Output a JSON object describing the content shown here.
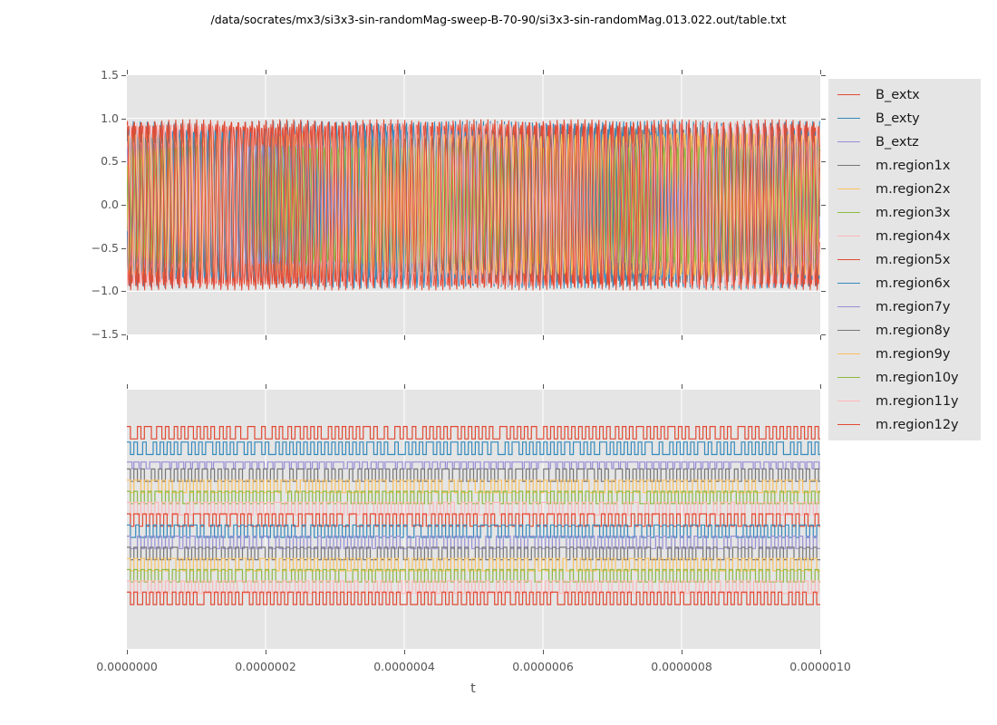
{
  "figure": {
    "title": "/data/socrates/mx3/si3x3-sin-randomMag-sweep-B-70-90/si3x3-sin-randomMag.013.022.out/table.txt",
    "background": "#ffffff",
    "panel_background": "#E5E5E5",
    "grid_color": "#ffffff",
    "tick_color": "#555555"
  },
  "palette": [
    "#E24A33",
    "#348ABD",
    "#988ED5",
    "#777777",
    "#FBC15E",
    "#8EBA42",
    "#FFB5B8"
  ],
  "legend": {
    "entries": [
      {
        "label": "B_extx",
        "color": "#E24A33"
      },
      {
        "label": "B_exty",
        "color": "#348ABD"
      },
      {
        "label": "B_extz",
        "color": "#988ED5"
      },
      {
        "label": "m.region1x",
        "color": "#777777"
      },
      {
        "label": "m.region2x",
        "color": "#FBC15E"
      },
      {
        "label": "m.region3x",
        "color": "#8EBA42"
      },
      {
        "label": "m.region4x",
        "color": "#FFB5B8"
      },
      {
        "label": "m.region5x",
        "color": "#E24A33"
      },
      {
        "label": "m.region6x",
        "color": "#348ABD"
      },
      {
        "label": "m.region7y",
        "color": "#988ED5"
      },
      {
        "label": "m.region8y",
        "color": "#777777"
      },
      {
        "label": "m.region9y",
        "color": "#FBC15E"
      },
      {
        "label": "m.region10y",
        "color": "#8EBA42"
      },
      {
        "label": "m.region11y",
        "color": "#FFB5B8"
      },
      {
        "label": "m.region12y",
        "color": "#E24A33"
      }
    ]
  },
  "chart_data": [
    {
      "type": "line",
      "panel": "top",
      "wave": "sine",
      "xlim": [
        0,
        1e-06
      ],
      "ylim": [
        -1.5,
        1.5
      ],
      "ytick_labels": [
        "1.5",
        "1.0",
        "0.5",
        "0.0",
        "−0.5",
        "−1.0",
        "−1.5"
      ],
      "grid": "both",
      "series": [
        {
          "name": "B_extx",
          "color": "#E24A33",
          "amplitude": 0.92,
          "cycles": 99,
          "phase": 0.0
        },
        {
          "name": "B_exty",
          "color": "#348ABD",
          "amplitude": 0.97,
          "cycles": 99,
          "phase": 2.1
        },
        {
          "name": "B_extz",
          "color": "#988ED5",
          "amplitude": 0.72,
          "cycles": 99,
          "phase": 4.2
        },
        {
          "name": "m.region1x",
          "color": "#777777",
          "amplitude": 0.9,
          "cycles": 101,
          "phase": 1.0
        },
        {
          "name": "m.region2x",
          "color": "#FBC15E",
          "amplitude": 0.84,
          "cycles": 98,
          "phase": 3.3
        },
        {
          "name": "m.region3x",
          "color": "#8EBA42",
          "amplitude": 0.79,
          "cycles": 102,
          "phase": 5.2
        },
        {
          "name": "m.region4x",
          "color": "#FFB5B8",
          "amplitude": 0.74,
          "cycles": 100,
          "phase": 1.7
        },
        {
          "name": "m.region5x",
          "color": "#E24A33",
          "amplitude": 0.94,
          "cycles": 100,
          "phase": 2.9
        },
        {
          "name": "m.region6x",
          "color": "#348ABD",
          "amplitude": 0.87,
          "cycles": 97,
          "phase": 5.6
        },
        {
          "name": "m.region7y",
          "color": "#988ED5",
          "amplitude": 0.7,
          "cycles": 103,
          "phase": 0.6
        },
        {
          "name": "m.region8y",
          "color": "#777777",
          "amplitude": 0.78,
          "cycles": 99,
          "phase": 3.8
        },
        {
          "name": "m.region9y",
          "color": "#FBC15E",
          "amplitude": 0.82,
          "cycles": 101,
          "phase": 5.9
        },
        {
          "name": "m.region10y",
          "color": "#8EBA42",
          "amplitude": 0.68,
          "cycles": 98,
          "phase": 2.4
        },
        {
          "name": "m.region11y",
          "color": "#FFB5B8",
          "amplitude": 0.95,
          "cycles": 102,
          "phase": 4.7
        },
        {
          "name": "m.region12y",
          "color": "#E24A33",
          "amplitude": 0.99,
          "cycles": 100,
          "phase": 1.2
        }
      ]
    },
    {
      "type": "line",
      "panel": "bottom",
      "wave": "square",
      "xlabel": "t",
      "xlim": [
        0,
        1e-06
      ],
      "xtick_labels": [
        "0.0000000",
        "0.0000002",
        "0.0000004",
        "0.0000006",
        "0.0000008",
        "0.0000010"
      ],
      "grid": "vertical-only",
      "series": [
        {
          "name": "B_extx",
          "color": "#E24A33",
          "center": 0.166,
          "half_amp": 0.024,
          "cycles": 99,
          "duty": 0.5
        },
        {
          "name": "B_exty",
          "color": "#348ABD",
          "center": 0.226,
          "half_amp": 0.024,
          "cycles": 99,
          "duty": 0.5
        },
        {
          "name": "B_extz",
          "color": "#988ED5",
          "center": 0.292,
          "half_amp": 0.013,
          "cycles": 99,
          "duty": 0.74
        },
        {
          "name": "m.region1x",
          "color": "#777777",
          "center": 0.33,
          "half_amp": 0.024,
          "cycles": 99,
          "duty": 0.5
        },
        {
          "name": "m.region2x",
          "color": "#FBC15E",
          "center": 0.373,
          "half_amp": 0.024,
          "cycles": 99,
          "duty": 0.5
        },
        {
          "name": "m.region3x",
          "color": "#8EBA42",
          "center": 0.416,
          "half_amp": 0.024,
          "cycles": 99,
          "duty": 0.5
        },
        {
          "name": "m.region4x",
          "color": "#FFB5B8",
          "center": 0.459,
          "half_amp": 0.024,
          "cycles": 99,
          "duty": 0.5
        },
        {
          "name": "m.region5x",
          "color": "#E24A33",
          "center": 0.503,
          "half_amp": 0.024,
          "cycles": 99,
          "duty": 0.5
        },
        {
          "name": "m.region6x",
          "color": "#348ABD",
          "center": 0.546,
          "half_amp": 0.024,
          "cycles": 99,
          "duty": 0.5
        },
        {
          "name": "m.region7y",
          "color": "#988ED5",
          "center": 0.589,
          "half_amp": 0.024,
          "cycles": 99,
          "duty": 0.5
        },
        {
          "name": "m.region8y",
          "color": "#777777",
          "center": 0.632,
          "half_amp": 0.024,
          "cycles": 99,
          "duty": 0.5
        },
        {
          "name": "m.region9y",
          "color": "#FBC15E",
          "center": 0.675,
          "half_amp": 0.024,
          "cycles": 99,
          "duty": 0.5
        },
        {
          "name": "m.region10y",
          "color": "#8EBA42",
          "center": 0.718,
          "half_amp": 0.024,
          "cycles": 99,
          "duty": 0.5
        },
        {
          "name": "m.region11y",
          "color": "#FFB5B8",
          "center": 0.762,
          "half_amp": 0.024,
          "cycles": 99,
          "duty": 0.5
        },
        {
          "name": "m.region12y",
          "color": "#E24A33",
          "center": 0.805,
          "half_amp": 0.024,
          "cycles": 99,
          "duty": 0.5
        }
      ]
    }
  ]
}
